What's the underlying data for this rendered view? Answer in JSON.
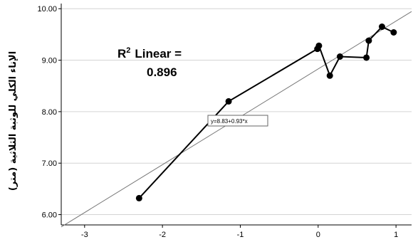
{
  "chart_data": {
    "type": "line",
    "ylabel": "الإناء الكلي للوثبة الثلاثية (متر)",
    "xlim": [
      -3.3,
      1.2
    ],
    "ylim": [
      5.8,
      10.1
    ],
    "x_ticks": [
      "-3",
      "-2",
      "-1",
      "0",
      "1"
    ],
    "y_ticks": [
      "6.00",
      "7.00",
      "8.00",
      "9.00",
      "10.00"
    ],
    "grid": "horizontal",
    "series": [
      {
        "values": [
          {
            "x": -2.3,
            "y": 6.32
          },
          {
            "x": -1.15,
            "y": 8.2
          },
          {
            "x": -0.01,
            "y": 9.22
          },
          {
            "x": 0.01,
            "y": 9.28
          },
          {
            "x": 0.15,
            "y": 8.7
          },
          {
            "x": 0.28,
            "y": 9.07
          },
          {
            "x": 0.62,
            "y": 9.05
          },
          {
            "x": 0.65,
            "y": 9.38
          },
          {
            "x": 0.82,
            "y": 9.65
          },
          {
            "x": 0.97,
            "y": 9.54
          }
        ]
      }
    ],
    "fit_line": {
      "intercept": 8.83,
      "slope": 0.93
    },
    "r2_text": {
      "prefix": "R",
      "sup": "2",
      "suffix": "Linear =",
      "value": "0.896"
    },
    "equation_label": "y=8.83+0.93*x"
  }
}
